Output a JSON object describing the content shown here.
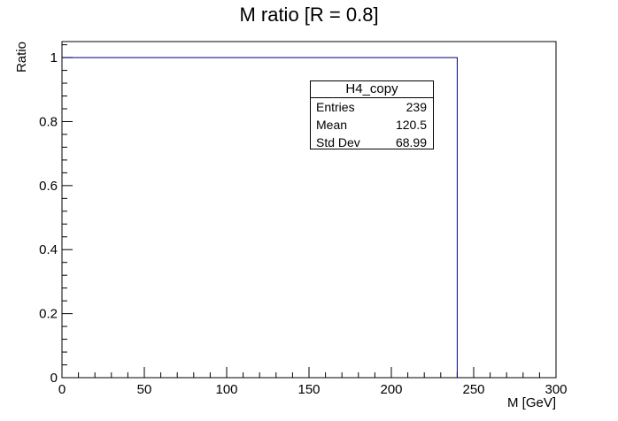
{
  "chart_data": {
    "type": "histogram",
    "title": "M ratio [R = 0.8]",
    "xlabel": "M [GeV]",
    "ylabel": "Ratio",
    "xlim": [
      0,
      300
    ],
    "ylim": [
      0,
      1.05
    ],
    "x_ticks": [
      0,
      50,
      100,
      150,
      200,
      250,
      300
    ],
    "y_ticks": [
      0,
      0.2,
      0.4,
      0.6,
      0.8,
      1
    ],
    "x_tick_labels": [
      "0",
      "50",
      "100",
      "150",
      "200",
      "250",
      "300"
    ],
    "y_tick_labels": [
      "0",
      "0.2",
      "0.4",
      "0.6",
      "0.8",
      "1"
    ],
    "grid": false,
    "series": [
      {
        "x_start": 0,
        "x_end": 240,
        "value": 1,
        "color": "#000080"
      }
    ],
    "stats": {
      "name": "H4_copy",
      "rows": [
        {
          "label": "Entries",
          "value": "239"
        },
        {
          "label": "Mean",
          "value": "120.5"
        },
        {
          "label": "Std Dev",
          "value": "68.99"
        }
      ]
    }
  }
}
